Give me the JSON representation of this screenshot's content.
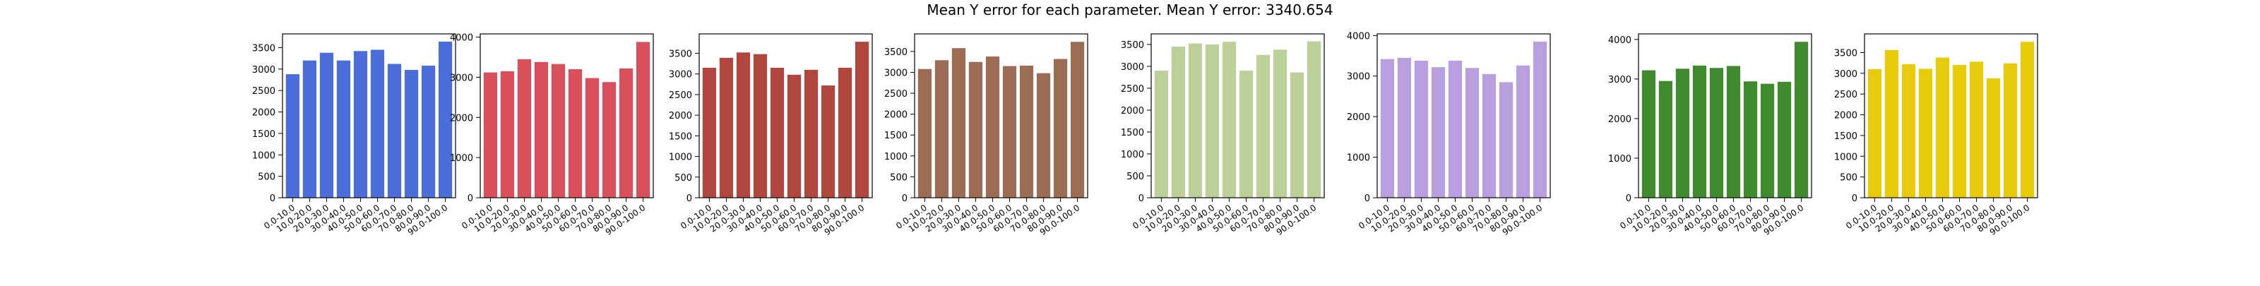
{
  "title": "Mean Y error for each parameter. Mean Y error: 3340.654",
  "chart_data": [
    {
      "type": "bar",
      "color": "#4B6ED8",
      "categories": [
        "0.0-10.0",
        "10.0-20.0",
        "20.0-30.0",
        "30.0-40.0",
        "40.0-50.0",
        "50.0-60.0",
        "60.0-70.0",
        "70.0-80.0",
        "80.0-90.0",
        "90.0-100.0"
      ],
      "values": [
        2880,
        3200,
        3380,
        3200,
        3420,
        3450,
        3120,
        2980,
        3080,
        3640
      ],
      "yticks": [
        0,
        500,
        1000,
        1500,
        2000,
        2500,
        3000,
        3500
      ],
      "ylim": [
        0,
        3820
      ]
    },
    {
      "type": "bar",
      "color": "#D94F5C",
      "categories": [
        "0.0-10.0",
        "10.0-20.0",
        "20.0-30.0",
        "30.0-40.0",
        "40.0-50.0",
        "50.0-60.0",
        "60.0-70.0",
        "70.0-80.0",
        "80.0-90.0",
        "90.0-100.0"
      ],
      "values": [
        3120,
        3150,
        3450,
        3380,
        3330,
        3200,
        2980,
        2880,
        3220,
        3880
      ],
      "yticks": [
        0,
        1000,
        2000,
        3000,
        4000
      ],
      "ylim": [
        0,
        4080
      ]
    },
    {
      "type": "bar",
      "color": "#B0473E",
      "categories": [
        "0.0-10.0",
        "10.0-20.0",
        "20.0-30.0",
        "30.0-40.0",
        "40.0-50.0",
        "50.0-60.0",
        "60.0-70.0",
        "70.0-80.0",
        "80.0-90.0",
        "90.0-100.0"
      ],
      "values": [
        3150,
        3390,
        3520,
        3480,
        3150,
        2980,
        3100,
        2720,
        3150,
        3780
      ],
      "yticks": [
        0,
        500,
        1000,
        1500,
        2000,
        2500,
        3000,
        3500
      ],
      "ylim": [
        0,
        3970
      ]
    },
    {
      "type": "bar",
      "color": "#9C6D55",
      "categories": [
        "0.0-10.0",
        "10.0-20.0",
        "20.0-30.0",
        "30.0-40.0",
        "40.0-50.0",
        "50.0-60.0",
        "60.0-70.0",
        "70.0-80.0",
        "80.0-90.0",
        "90.0-100.0"
      ],
      "values": [
        3080,
        3290,
        3580,
        3250,
        3380,
        3150,
        3160,
        2980,
        3320,
        3730
      ],
      "yticks": [
        0,
        500,
        1000,
        1500,
        2000,
        2500,
        3000,
        3500
      ],
      "ylim": [
        0,
        3920
      ]
    },
    {
      "type": "bar",
      "color": "#BCD09A",
      "categories": [
        "0.0-10.0",
        "10.0-20.0",
        "20.0-30.0",
        "30.0-40.0",
        "40.0-50.0",
        "50.0-60.0",
        "60.0-70.0",
        "70.0-80.0",
        "80.0-90.0",
        "90.0-100.0"
      ],
      "values": [
        2900,
        3450,
        3520,
        3500,
        3560,
        2900,
        3260,
        3380,
        2860,
        3570
      ],
      "yticks": [
        0,
        500,
        1000,
        1500,
        2000,
        2500,
        3000,
        3500
      ],
      "ylim": [
        0,
        3740
      ]
    },
    {
      "type": "bar",
      "color": "#B89FE0",
      "categories": [
        "0.0-10.0",
        "10.0-20.0",
        "20.0-30.0",
        "30.0-40.0",
        "40.0-50.0",
        "50.0-60.0",
        "60.0-70.0",
        "70.0-80.0",
        "80.0-90.0",
        "90.0-100.0"
      ],
      "values": [
        3420,
        3450,
        3380,
        3220,
        3380,
        3200,
        3050,
        2850,
        3260,
        3850
      ],
      "yticks": [
        0,
        1000,
        2000,
        3000,
        4000
      ],
      "ylim": [
        0,
        4040
      ]
    },
    {
      "type": "bar",
      "color": "#3F8A2E",
      "categories": [
        "0.0-10.0",
        "10.0-20.0",
        "20.0-30.0",
        "30.0-40.0",
        "40.0-50.0",
        "50.0-60.0",
        "60.0-70.0",
        "70.0-80.0",
        "80.0-90.0",
        "90.0-100.0"
      ],
      "values": [
        3220,
        2950,
        3260,
        3340,
        3280,
        3330,
        2940,
        2880,
        2930,
        3940
      ],
      "yticks": [
        0,
        1000,
        2000,
        3000,
        4000
      ],
      "ylim": [
        0,
        4140
      ]
    },
    {
      "type": "bar",
      "color": "#E8CC0C",
      "categories": [
        "0.0-10.0",
        "10.0-20.0",
        "20.0-30.0",
        "30.0-40.0",
        "40.0-50.0",
        "50.0-60.0",
        "60.0-70.0",
        "70.0-80.0",
        "80.0-90.0",
        "90.0-100.0"
      ],
      "values": [
        3100,
        3560,
        3220,
        3110,
        3380,
        3200,
        3280,
        2880,
        3240,
        3760
      ],
      "yticks": [
        0,
        500,
        1000,
        1500,
        2000,
        2500,
        3000,
        3500
      ],
      "ylim": [
        0,
        3950
      ]
    }
  ]
}
